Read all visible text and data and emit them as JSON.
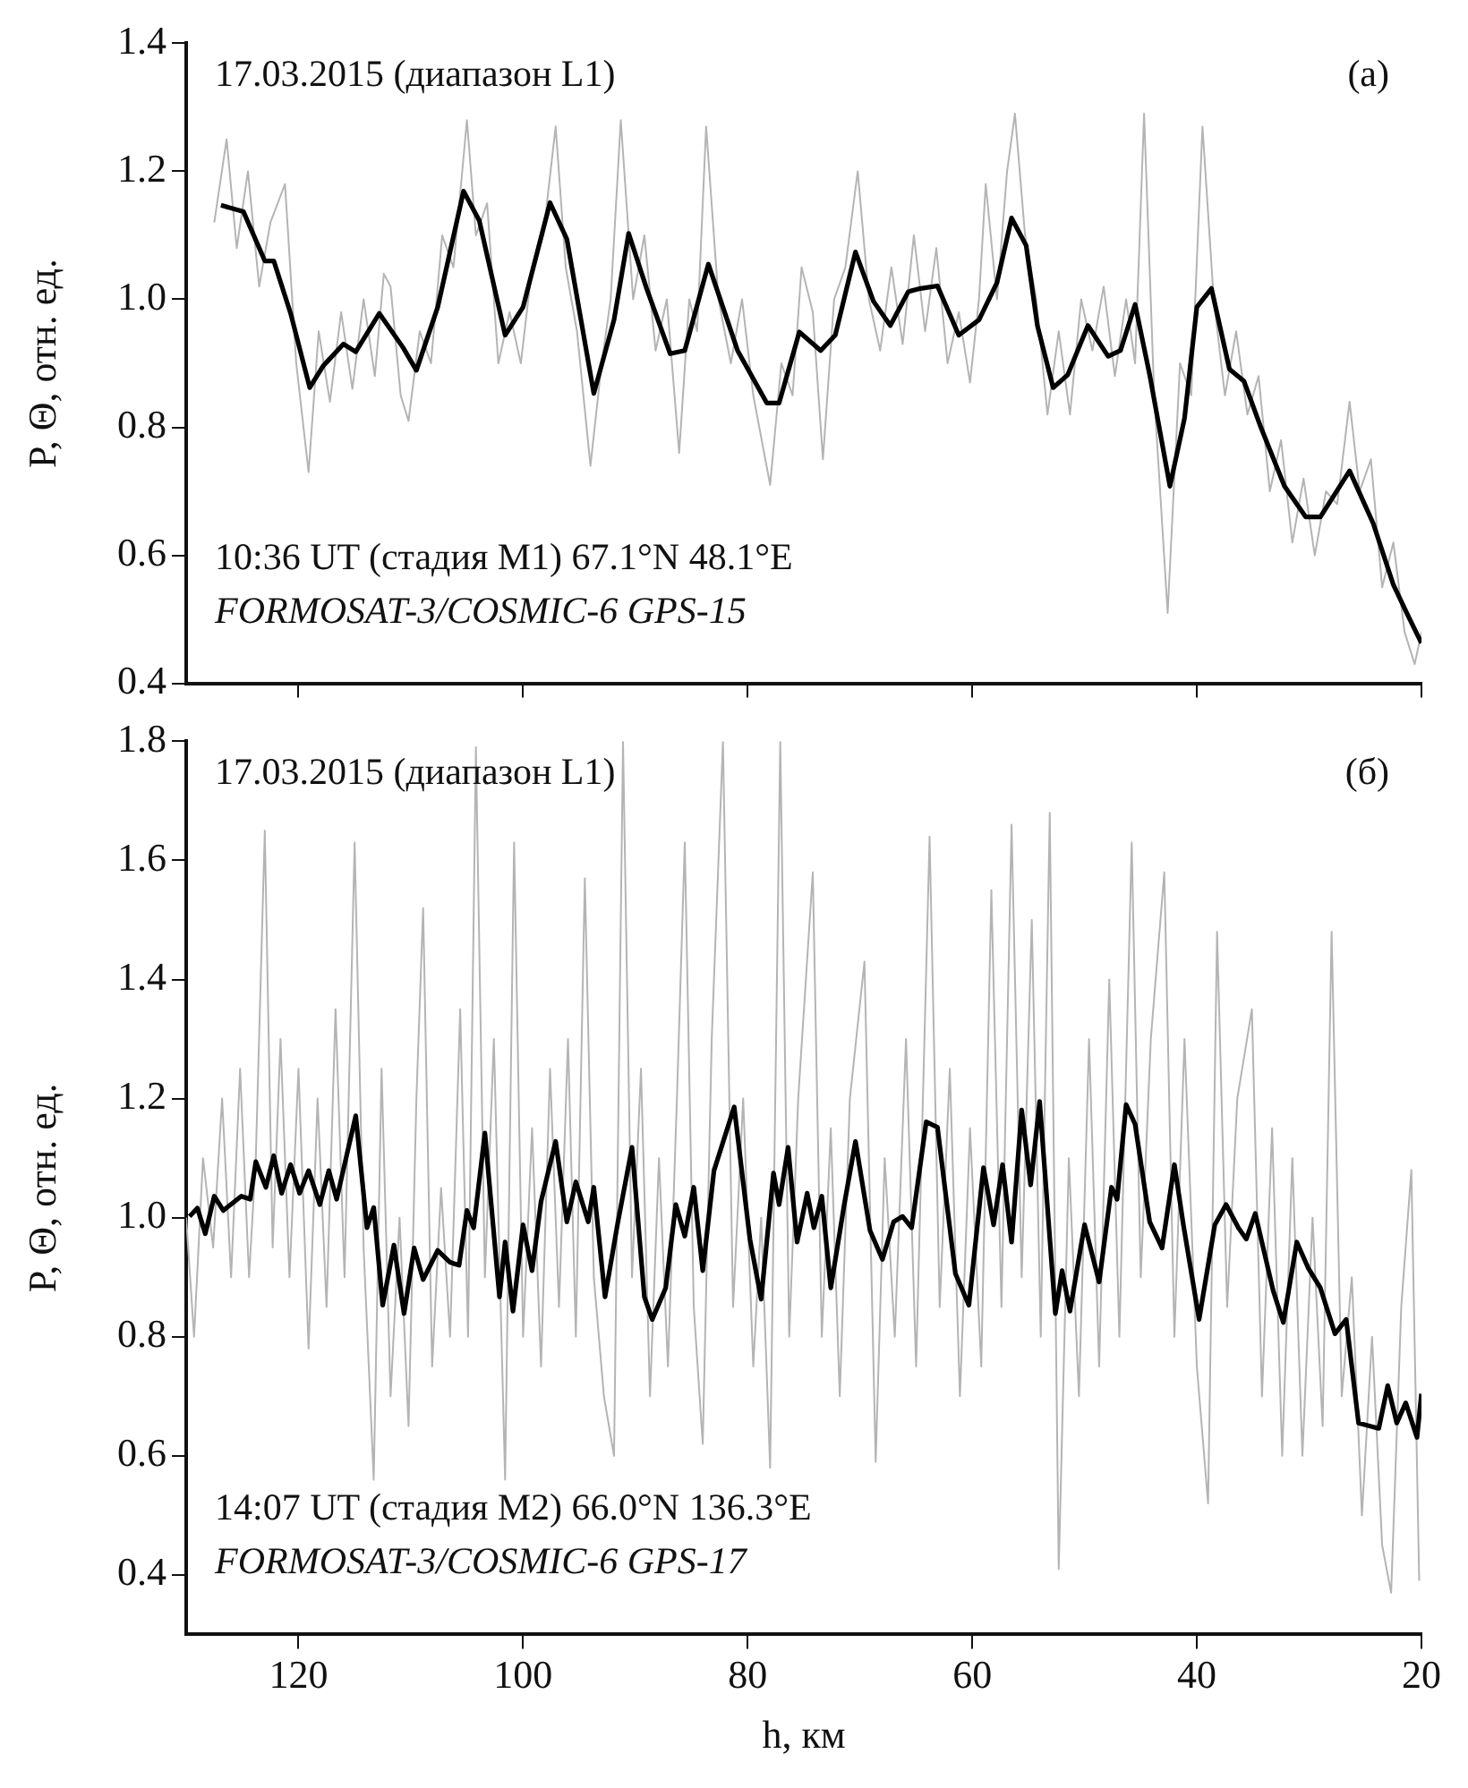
{
  "chart_data": [
    {
      "type": "line",
      "ylabel": "P, Θ, отн. ед.",
      "xlim": [
        130,
        20
      ],
      "xticks": [
        120,
        100,
        80,
        60,
        40,
        20
      ],
      "ylim": [
        0.4,
        1.4
      ],
      "yticks": [
        0.4,
        0.6,
        0.8,
        {
          "value": 1,
          "label": "1.0"
        },
        1.2,
        1.4
      ],
      "tick_labels": "y",
      "legend": false,
      "annotations": [
        "17.03.2015 (диапазон L1)",
        "(а)",
        "10:36 UT (стадия M1) 67.1°N 48.1°E",
        "FORMOSAT-3/COSMIC-6 GPS-15"
      ],
      "series": [
        {
          "color": "#b4b4b4",
          "x": [
            127.5,
            126.4,
            125.5,
            124.5,
            123.5,
            122.5,
            121.2,
            120.2,
            119.1,
            118.2,
            117.2,
            116.2,
            115.2,
            114.2,
            113.2,
            112.4,
            111.8,
            110.9,
            110.2,
            109.2,
            108.2,
            107.2,
            106.2,
            105.0,
            104.2,
            103.2,
            102.2,
            101.2,
            100.2,
            99.2,
            98.2,
            97.1,
            96.2,
            95.2,
            94.0,
            93.0,
            92.2,
            91.3,
            90.2,
            89.2,
            88.2,
            87.2,
            86.1,
            85.2,
            84.5,
            83.7,
            82.6,
            81.5,
            80.5,
            79.5,
            78.0,
            77.0,
            76.0,
            75.2,
            74.2,
            73.3,
            72.3,
            71.3,
            70.2,
            69.2,
            68.2,
            67.2,
            66.2,
            65.2,
            64.2,
            63.2,
            62.2,
            61.2,
            60.2,
            59.4,
            58.8,
            57.8,
            56.9,
            56.2,
            55.3,
            54.3,
            53.3,
            52.3,
            51.3,
            50.3,
            49.3,
            48.3,
            47.3,
            46.3,
            45.5,
            44.7,
            43.8,
            42.6,
            41.5,
            40.5,
            39.5,
            38.5,
            37.5,
            36.5,
            35.5,
            34.5,
            33.5,
            32.5,
            31.5,
            30.5,
            29.5,
            28.5,
            27.5,
            26.4,
            25.5,
            24.5,
            23.5,
            22.5,
            21.5,
            20.6,
            20
          ],
          "values": [
            1.12,
            1.25,
            1.08,
            1.2,
            1.02,
            1.12,
            1.18,
            0.9,
            0.73,
            0.95,
            0.84,
            0.98,
            0.86,
            1.0,
            0.88,
            1.04,
            1.02,
            0.85,
            0.81,
            0.95,
            0.9,
            1.1,
            1.05,
            1.28,
            1.1,
            1.15,
            0.9,
            0.98,
            0.9,
            1.05,
            1.1,
            1.27,
            1.05,
            0.95,
            0.74,
            0.9,
            1.0,
            1.28,
            1.0,
            1.1,
            0.92,
            1.0,
            0.76,
            1.0,
            0.95,
            1.27,
            1.0,
            0.9,
            1.0,
            0.85,
            0.71,
            0.9,
            0.85,
            1.05,
            0.98,
            0.75,
            1.0,
            1.05,
            1.2,
            1.0,
            0.92,
            1.05,
            0.93,
            1.1,
            0.95,
            1.08,
            0.9,
            0.98,
            0.87,
            1.0,
            1.18,
            1.0,
            1.2,
            1.29,
            1.1,
            1.0,
            0.82,
            0.95,
            0.82,
            1.0,
            0.92,
            1.02,
            0.88,
            1.0,
            0.9,
            1.29,
            0.85,
            0.51,
            0.9,
            0.85,
            1.27,
            1.0,
            0.85,
            0.95,
            0.82,
            0.88,
            0.7,
            0.78,
            0.62,
            0.72,
            0.6,
            0.7,
            0.68,
            0.84,
            0.7,
            0.75,
            0.55,
            0.62,
            0.48,
            0.43,
            0.48
          ]
        },
        {
          "color": "#000000",
          "x": [
            126.9,
            124.9,
            123.0,
            122.2,
            120.7,
            119.0,
            117.8,
            116.0,
            114.9,
            112.8,
            110.7,
            109.5,
            107.6,
            105.3,
            103.9,
            101.6,
            100.0,
            97.6,
            96.1,
            93.7,
            91.9,
            90.6,
            89.0,
            86.9,
            85.6,
            83.5,
            80.9,
            78.3,
            77.2,
            75.4,
            73.5,
            72.2,
            70.4,
            68.8,
            67.3,
            65.7,
            64.6,
            63.1,
            61.2,
            59.4,
            57.8,
            56.5,
            55.2,
            54.2,
            52.8,
            51.5,
            49.7,
            47.9,
            46.8,
            45.5,
            44.2,
            42.4,
            41.1,
            40.0,
            38.7,
            37.1,
            35.8,
            34.3,
            32.2,
            30.3,
            29.0,
            26.4,
            24.3,
            22.5,
            21.2,
            20.0
          ],
          "values": [
            1.147,
            1.137,
            1.06,
            1.06,
            0.978,
            0.862,
            0.896,
            0.93,
            0.918,
            0.978,
            0.925,
            0.889,
            0.988,
            1.169,
            1.123,
            0.944,
            0.988,
            1.151,
            1.094,
            0.853,
            0.968,
            1.103,
            1.017,
            0.915,
            0.92,
            1.055,
            0.92,
            0.838,
            0.838,
            0.949,
            0.92,
            0.944,
            1.074,
            0.997,
            0.959,
            1.012,
            1.017,
            1.021,
            0.944,
            0.968,
            1.026,
            1.127,
            1.084,
            0.959,
            0.862,
            0.882,
            0.959,
            0.911,
            0.92,
            0.992,
            0.882,
            0.708,
            0.814,
            0.988,
            1.017,
            0.891,
            0.872,
            0.8,
            0.708,
            0.66,
            0.66,
            0.732,
            0.65,
            0.554,
            0.506,
            0.463
          ]
        }
      ]
    },
    {
      "type": "line",
      "xlabel": "h, км",
      "ylabel": "P, Θ, отн. ед.",
      "xlim": [
        130,
        20
      ],
      "xticks": [
        120,
        100,
        80,
        60,
        40,
        20
      ],
      "ylim": [
        0.3,
        1.8
      ],
      "yticks": [
        0.4,
        0.6,
        0.8,
        {
          "value": 1,
          "label": "1.0"
        },
        1.2,
        1.4,
        1.6,
        1.8
      ],
      "legend": false,
      "annotations": [
        "17.03.2015 (диапазон L1)",
        "(б)",
        "14:07 UT (стадия M2) 66.0°N 136.3°E",
        "FORMOSAT-3/COSMIC-6 GPS-17"
      ],
      "series": [
        {
          "color": "#b4b4b4",
          "x": [
            130,
            129.3,
            128.5,
            127.6,
            126.8,
            126.0,
            125.2,
            124.4,
            123.8,
            123.0,
            122.3,
            121.6,
            120.8,
            120.0,
            119.1,
            118.3,
            117.5,
            116.7,
            115.9,
            115.0,
            114.2,
            113.3,
            112.6,
            111.8,
            111.0,
            110.2,
            109.5,
            108.9,
            108.1,
            107.3,
            106.5,
            105.6,
            104.9,
            104.2,
            103.4,
            102.6,
            101.6,
            100.8,
            100.0,
            99.2,
            98.4,
            97.6,
            96.8,
            96.0,
            95.3,
            94.5,
            93.7,
            92.8,
            91.9,
            91.1,
            90.3,
            89.5,
            88.7,
            87.9,
            87.1,
            86.3,
            85.6,
            84.8,
            84.0,
            83.2,
            82.2,
            81.3,
            80.4,
            79.5,
            78.8,
            78.0,
            77.1,
            76.3,
            75.5,
            74.2,
            73.4,
            72.6,
            71.8,
            70.9,
            69.6,
            68.6,
            67.8,
            66.9,
            65.9,
            65.0,
            63.8,
            62.9,
            62.0,
            61.1,
            60.2,
            59.2,
            58.3,
            57.4,
            56.5,
            55.6,
            54.7,
            53.9,
            53.1,
            52.3,
            51.4,
            50.5,
            49.6,
            48.7,
            47.8,
            46.9,
            45.8,
            45.0,
            44.1,
            42.9,
            42.0,
            41.1,
            40.0,
            39.0,
            38.2,
            37.3,
            36.4,
            35.1,
            34.2,
            33.3,
            32.4,
            31.5,
            30.6,
            29.7,
            28.8,
            28.0,
            27.1,
            26.2,
            25.3,
            24.4,
            23.5,
            22.7,
            21.8,
            20.9,
            20.2
          ],
          "values": [
            1.0,
            0.8,
            1.1,
            0.95,
            1.2,
            0.9,
            1.25,
            0.9,
            1.1,
            1.65,
            0.95,
            1.3,
            0.9,
            1.25,
            0.78,
            1.2,
            0.85,
            1.35,
            0.9,
            1.63,
            0.95,
            0.56,
            1.25,
            0.7,
            1.0,
            0.65,
            1.2,
            1.52,
            0.75,
            1.05,
            0.8,
            1.35,
            0.8,
            1.79,
            0.9,
            1.3,
            0.56,
            1.63,
            0.8,
            1.15,
            0.75,
            1.25,
            0.85,
            1.3,
            0.8,
            1.57,
            0.9,
            0.7,
            0.6,
            1.8,
            0.9,
            1.25,
            0.7,
            1.1,
            0.75,
            1.2,
            1.63,
            0.85,
            0.62,
            1.3,
            1.8,
            0.85,
            1.2,
            0.75,
            1.0,
            0.58,
            1.8,
            0.8,
            1.2,
            1.58,
            0.8,
            1.15,
            0.7,
            1.2,
            1.43,
            0.59,
            1.1,
            0.8,
            1.3,
            0.75,
            1.64,
            0.85,
            1.25,
            0.7,
            1.15,
            0.75,
            1.55,
            0.85,
            1.66,
            0.9,
            1.5,
            0.8,
            1.68,
            0.41,
            1.1,
            0.7,
            1.3,
            0.75,
            1.4,
            0.8,
            1.63,
            0.9,
            1.3,
            1.58,
            0.8,
            1.3,
            0.75,
            0.52,
            1.48,
            0.85,
            1.2,
            1.35,
            0.7,
            1.15,
            0.6,
            1.1,
            0.6,
            1.0,
            0.65,
            1.48,
            0.7,
            0.9,
            0.5,
            0.8,
            0.45,
            0.37,
            0.85,
            1.08,
            0.39
          ]
        },
        {
          "color": "#000000",
          "x": [
            129.7,
            129.0,
            128.3,
            127.5,
            126.7,
            125.1,
            124.3,
            123.8,
            122.9,
            122.2,
            121.5,
            120.7,
            119.9,
            119.1,
            118.1,
            117.3,
            116.6,
            115.9,
            114.9,
            113.9,
            113.3,
            112.5,
            111.5,
            110.6,
            109.7,
            108.9,
            107.6,
            106.5,
            105.7,
            105.0,
            104.4,
            103.4,
            102.1,
            101.6,
            100.9,
            100.0,
            99.2,
            98.4,
            97.1,
            96.1,
            95.3,
            94.2,
            93.7,
            92.7,
            91.6,
            90.3,
            89.2,
            88.5,
            87.3,
            86.4,
            85.6,
            84.8,
            84.0,
            83.0,
            81.2,
            79.8,
            78.8,
            77.7,
            77.2,
            76.4,
            75.6,
            74.7,
            74.1,
            73.4,
            72.6,
            71.4,
            70.4,
            69.1,
            68.0,
            67.0,
            66.2,
            65.4,
            64.1,
            63.1,
            61.5,
            60.3,
            59.0,
            58.1,
            57.3,
            56.5,
            55.6,
            54.8,
            54.0,
            52.6,
            52.0,
            51.3,
            50.0,
            48.7,
            47.6,
            47.1,
            46.3,
            45.5,
            44.2,
            43.1,
            42.0,
            41.2,
            39.8,
            38.4,
            37.4,
            36.3,
            35.6,
            34.8,
            33.2,
            32.3,
            31.1,
            30.1,
            29.0,
            27.7,
            26.7,
            25.6,
            23.8,
            23.0,
            22.2,
            21.4,
            20.4,
            20.0
          ],
          "values": [
            1.002,
            1.016,
            0.973,
            1.036,
            1.012,
            1.036,
            1.031,
            1.094,
            1.051,
            1.104,
            1.041,
            1.089,
            1.041,
            1.079,
            1.022,
            1.079,
            1.031,
            1.089,
            1.171,
            0.983,
            1.017,
            0.853,
            0.954,
            0.839,
            0.949,
            0.896,
            0.945,
            0.925,
            0.92,
            1.012,
            0.983,
            1.142,
            0.867,
            0.959,
            0.843,
            0.988,
            0.911,
            1.027,
            1.128,
            0.993,
            1.06,
            0.993,
            1.051,
            0.867,
            0.988,
            1.118,
            0.867,
            0.829,
            0.882,
            1.022,
            0.969,
            1.051,
            0.911,
            1.079,
            1.186,
            0.964,
            0.863,
            1.075,
            1.022,
            1.118,
            0.959,
            1.041,
            0.983,
            1.036,
            0.882,
            1.022,
            1.128,
            0.978,
            0.93,
            0.993,
            1.002,
            0.983,
            1.161,
            1.152,
            0.906,
            0.853,
            1.084,
            0.988,
            1.089,
            0.959,
            1.181,
            1.055,
            1.195,
            0.839,
            0.911,
            0.843,
            0.988,
            0.892,
            1.051,
            1.031,
            1.19,
            1.157,
            0.993,
            0.949,
            1.089,
            0.988,
            0.829,
            0.988,
            1.022,
            0.983,
            0.964,
            1.007,
            0.877,
            0.824,
            0.959,
            0.916,
            0.882,
            0.805,
            0.829,
            0.655,
            0.646,
            0.718,
            0.655,
            0.689,
            0.631,
            0.704
          ]
        }
      ]
    }
  ]
}
